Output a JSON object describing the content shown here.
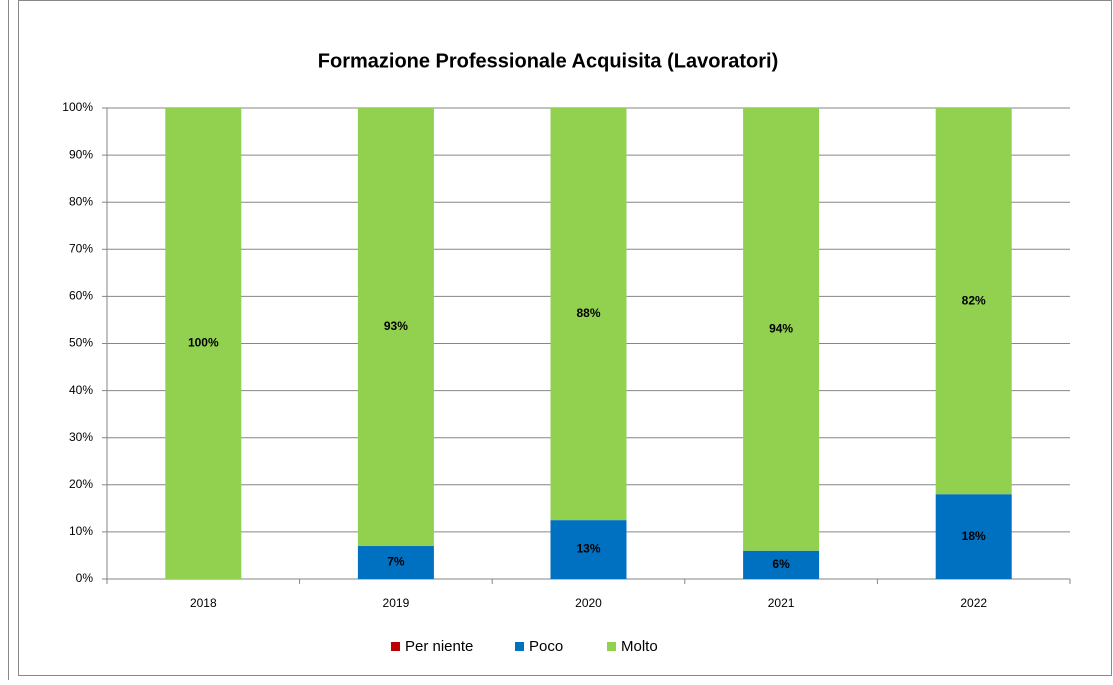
{
  "chart_data": {
    "type": "stacked_bar",
    "title": "Formazione Professionale Acquisita (Lavoratori)",
    "categories": [
      "2018",
      "2019",
      "2020",
      "2021",
      "2022"
    ],
    "series": [
      {
        "name": "Per niente",
        "color": "#c00000",
        "values": [
          0,
          0,
          0,
          0,
          0
        ]
      },
      {
        "name": "Poco",
        "color": "#0070c0",
        "values": [
          0,
          7,
          12.5,
          6,
          18
        ],
        "value_labels": [
          null,
          "7%",
          "13%",
          "6%",
          "18%"
        ]
      },
      {
        "name": "Molto",
        "color": "#92d050",
        "values": [
          100,
          93,
          87.5,
          94,
          82
        ],
        "value_labels": [
          "100%",
          "93%",
          "88%",
          "94%",
          "82%"
        ]
      }
    ],
    "ylim": [
      0,
      100
    ],
    "yticks": [
      {
        "value": 0,
        "label": "0%"
      },
      {
        "value": 10,
        "label": "10%"
      },
      {
        "value": 20,
        "label": "20%"
      },
      {
        "value": 30,
        "label": "30%"
      },
      {
        "value": 40,
        "label": "40%"
      },
      {
        "value": 50,
        "label": "50%"
      },
      {
        "value": 60,
        "label": "60%"
      },
      {
        "value": 70,
        "label": "70%"
      },
      {
        "value": 80,
        "label": "80%"
      },
      {
        "value": 90,
        "label": "90%"
      },
      {
        "value": 100,
        "label": "100%"
      }
    ],
    "grid": true,
    "legend": "bottom"
  }
}
